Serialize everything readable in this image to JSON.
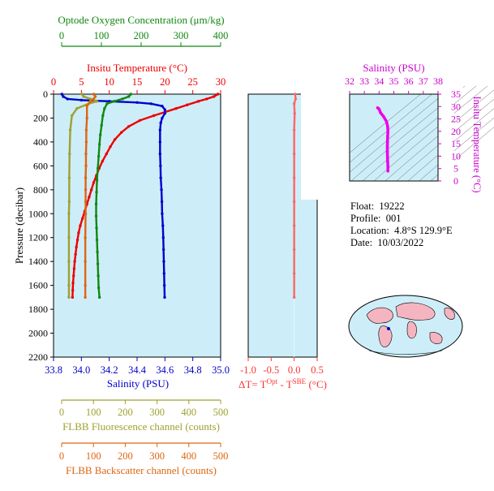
{
  "info": {
    "float_label": "Float:",
    "float_value": "19222",
    "profile_label": "Profile:",
    "profile_value": "001",
    "location_label": "Location:",
    "location_value": "4.8°S  129.9°E",
    "date_label": "Date:",
    "date_value": "10/03/2022"
  },
  "chart_data": [
    {
      "type": "line",
      "panel": "main-profile",
      "ylabel": "Pressure (decibar)",
      "ylim": [
        0,
        2200
      ],
      "y_ticks": [
        "0",
        "200",
        "400",
        "600",
        "800",
        "1000",
        "1200",
        "1400",
        "1600",
        "1800",
        "2000",
        "2200"
      ],
      "grid": false,
      "axes": {
        "oxygen": {
          "label": "Optode Oxygen Concentration (μm/kg)",
          "range": [
            0,
            400
          ],
          "ticks": [
            "0",
            "100",
            "200",
            "300",
            "400"
          ],
          "color": "#118811"
        },
        "temperature": {
          "label": "Insitu Temperature (°C)",
          "range": [
            0,
            30
          ],
          "ticks": [
            "0",
            "5",
            "10",
            "15",
            "20",
            "25",
            "30"
          ],
          "color": "#ee0000"
        },
        "salinity": {
          "label": "Salinity (PSU)",
          "range": [
            33.8,
            35.0
          ],
          "ticks": [
            "33.8",
            "34.0",
            "34.2",
            "34.4",
            "34.6",
            "34.8",
            "35.0"
          ],
          "color": "#0000cc"
        },
        "fluorescence": {
          "label": "FLBB Fluorescence channel (counts)",
          "range": [
            0,
            500
          ],
          "ticks": [
            "0",
            "100",
            "200",
            "300",
            "400",
            "500"
          ],
          "color": "#a0a030"
        },
        "backscatter": {
          "label": "FLBB Backscatter channel (counts)",
          "range": [
            0,
            500
          ],
          "ticks": [
            "0",
            "100",
            "200",
            "300",
            "400",
            "500"
          ],
          "color": "#dd6611"
        }
      },
      "series": [
        {
          "key": "temperature",
          "color": "#ee0000",
          "points": [
            [
              29.5,
              0
            ],
            [
              28.8,
              20
            ],
            [
              27.5,
              40
            ],
            [
              26,
              60
            ],
            [
              24,
              90
            ],
            [
              22,
              120
            ],
            [
              20,
              150
            ],
            [
              18,
              180
            ],
            [
              15.5,
              220
            ],
            [
              13.5,
              270
            ],
            [
              12.2,
              320
            ],
            [
              11,
              380
            ],
            [
              10.2,
              440
            ],
            [
              9.5,
              500
            ],
            [
              8.8,
              560
            ],
            [
              8.2,
              620
            ],
            [
              7.7,
              680
            ],
            [
              7.2,
              740
            ],
            [
              6.8,
              800
            ],
            [
              6.4,
              860
            ],
            [
              6.0,
              920
            ],
            [
              5.6,
              980
            ],
            [
              5.2,
              1040
            ],
            [
              4.8,
              1100
            ],
            [
              4.5,
              1160
            ],
            [
              4.3,
              1220
            ],
            [
              4.1,
              1280
            ],
            [
              3.95,
              1340
            ],
            [
              3.8,
              1400
            ],
            [
              3.7,
              1460
            ],
            [
              3.6,
              1520
            ],
            [
              3.5,
              1580
            ],
            [
              3.45,
              1640
            ],
            [
              3.4,
              1700
            ]
          ]
        },
        {
          "key": "salinity",
          "color": "#0000cc",
          "points": [
            [
              33.86,
              0
            ],
            [
              33.87,
              20
            ],
            [
              33.9,
              40
            ],
            [
              34.0,
              50
            ],
            [
              34.2,
              60
            ],
            [
              34.4,
              70
            ],
            [
              34.5,
              80
            ],
            [
              34.58,
              100
            ],
            [
              34.6,
              130
            ],
            [
              34.6,
              160
            ],
            [
              34.58,
              200
            ],
            [
              34.57,
              240
            ],
            [
              34.565,
              300
            ],
            [
              34.565,
              400
            ],
            [
              34.565,
              500
            ],
            [
              34.568,
              600
            ],
            [
              34.57,
              700
            ],
            [
              34.575,
              800
            ],
            [
              34.578,
              900
            ],
            [
              34.58,
              1000
            ],
            [
              34.585,
              1100
            ],
            [
              34.588,
              1200
            ],
            [
              34.59,
              1300
            ],
            [
              34.592,
              1400
            ],
            [
              34.594,
              1500
            ],
            [
              34.596,
              1600
            ],
            [
              34.598,
              1700
            ]
          ]
        },
        {
          "key": "oxygen",
          "color": "#118811",
          "points": [
            [
              185,
              0
            ],
            [
              180,
              20
            ],
            [
              165,
              40
            ],
            [
              145,
              60
            ],
            [
              128,
              80
            ],
            [
              122,
              120
            ],
            [
              118,
              180
            ],
            [
              115,
              260
            ],
            [
              112,
              340
            ],
            [
              110,
              420
            ],
            [
              108,
              520
            ],
            [
              106,
              620
            ],
            [
              104,
              720
            ],
            [
              103,
              820
            ],
            [
              102,
              920
            ],
            [
              102,
              1020
            ],
            [
              103,
              1120
            ],
            [
              104,
              1220
            ],
            [
              105,
              1320
            ],
            [
              106,
              1420
            ],
            [
              107,
              1520
            ],
            [
              108,
              1620
            ],
            [
              110,
              1700
            ]
          ]
        },
        {
          "key": "fluorescence",
          "color": "#a0a030",
          "points": [
            [
              85,
              0
            ],
            [
              90,
              20
            ],
            [
              110,
              40
            ],
            [
              130,
              60
            ],
            [
              105,
              80
            ],
            [
              70,
              120
            ],
            [
              55,
              180
            ],
            [
              50,
              300
            ],
            [
              48,
              500
            ],
            [
              47,
              700
            ],
            [
              47,
              900
            ],
            [
              46,
              1000
            ],
            [
              46,
              1200
            ],
            [
              46,
              1400
            ],
            [
              46,
              1600
            ],
            [
              46,
              1700
            ]
          ]
        },
        {
          "key": "backscatter",
          "color": "#dd6611",
          "points": [
            [
              120,
              0
            ],
            [
              125,
              20
            ],
            [
              120,
              40
            ],
            [
              110,
              60
            ],
            [
              100,
              100
            ],
            [
              100,
              200
            ],
            [
              98,
              300
            ],
            [
              98,
              400
            ],
            [
              97,
              500
            ],
            [
              97,
              600
            ],
            [
              96,
              700
            ],
            [
              96,
              800
            ],
            [
              96,
              900
            ],
            [
              96,
              1000
            ],
            [
              95,
              1200
            ],
            [
              95,
              1400
            ],
            [
              95,
              1600
            ],
            [
              95,
              1700
            ]
          ]
        }
      ]
    },
    {
      "type": "line",
      "panel": "delta-t",
      "xlabel": "ΔT= T",
      "xlabel_sup1": "Opt",
      "xlabel_mid": " - T",
      "xlabel_sup2": "SBE",
      "xlabel_unit": " (°C)",
      "xlim": [
        -1.0,
        0.5
      ],
      "x_ticks": [
        "-1.0",
        "-0.5",
        "0.0",
        "0.5"
      ],
      "ylim": [
        0,
        2200
      ],
      "color": "#ff6666",
      "points": [
        [
          0.02,
          0
        ],
        [
          0.03,
          40
        ],
        [
          0.0,
          80
        ],
        [
          0.01,
          160
        ],
        [
          0.0,
          300
        ],
        [
          0.0,
          500
        ],
        [
          0.0,
          700
        ],
        [
          0.0,
          900
        ],
        [
          0.0,
          1100
        ],
        [
          0.0,
          1300
        ],
        [
          0.0,
          1500
        ],
        [
          0.0,
          1700
        ]
      ]
    },
    {
      "type": "line",
      "panel": "ts-diagram",
      "xlabel": "Salinity (PSU)",
      "ylabel": "Insitu Temperature (°C)",
      "xlim": [
        32,
        38
      ],
      "ylim": [
        0,
        35
      ],
      "x_ticks": [
        "32",
        "33",
        "34",
        "35",
        "36",
        "37",
        "38"
      ],
      "y_ticks": [
        "0",
        "5",
        "10",
        "15",
        "20",
        "25",
        "30",
        "35"
      ],
      "color": "#ee00ee",
      "points": [
        [
          34.6,
          4
        ],
        [
          34.6,
          6
        ],
        [
          34.58,
          8
        ],
        [
          34.57,
          10
        ],
        [
          34.56,
          12
        ],
        [
          34.56,
          14
        ],
        [
          34.57,
          16
        ],
        [
          34.58,
          18
        ],
        [
          34.6,
          20
        ],
        [
          34.58,
          22
        ],
        [
          34.5,
          24
        ],
        [
          34.3,
          26
        ],
        [
          34.1,
          27.5
        ],
        [
          34.0,
          29
        ],
        [
          33.9,
          29.5
        ]
      ]
    }
  ]
}
